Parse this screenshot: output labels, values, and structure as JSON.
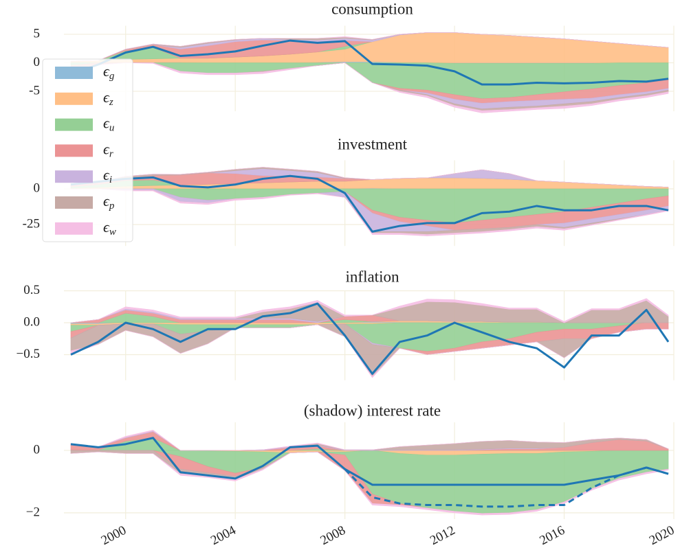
{
  "chart_data": [
    {
      "type": "area",
      "title": "consumption",
      "x": [
        1998,
        1999,
        2000,
        2001,
        2002,
        2003,
        2004,
        2005,
        2006,
        2007,
        2008,
        2009,
        2010,
        2011,
        2012,
        2013,
        2014,
        2015,
        2016,
        2017,
        2018,
        2019,
        2019.8
      ],
      "xlim": [
        1998,
        2020
      ],
      "ylim": [
        -8.5,
        6.5
      ],
      "yticks": [
        5,
        0,
        -5
      ],
      "grid": true,
      "legend": "upper left",
      "series": [
        {
          "name": "ϵg",
          "color": "#8fbbd9",
          "values": [
            0.1,
            0.1,
            0.1,
            0.1,
            0.1,
            0,
            0,
            0,
            0,
            0.1,
            0.2,
            0.2,
            0.1,
            0,
            -0.1,
            -0.1,
            -0.1,
            -0.1,
            -0.1,
            -0.1,
            0,
            0,
            0
          ]
        },
        {
          "name": "ϵz",
          "color": "#ffbf86",
          "values": [
            0.2,
            0.3,
            0.5,
            0.6,
            0.7,
            0.8,
            1,
            1.2,
            1.5,
            1.8,
            2.2,
            3.5,
            4.8,
            5.3,
            5.3,
            5.0,
            4.8,
            4.5,
            4.2,
            3.8,
            3.4,
            3.0,
            2.7
          ]
        },
        {
          "name": "ϵu",
          "color": "#95cf95",
          "values": [
            -0.5,
            0,
            1.5,
            2,
            -1.5,
            -1.8,
            -1.8,
            -1.5,
            -1,
            -0.5,
            0.5,
            -3.5,
            -4.5,
            -4.8,
            -5.5,
            -6.2,
            -6.0,
            -5.5,
            -5,
            -4.5,
            -4,
            -3.5,
            -3
          ]
        },
        {
          "name": "ϵr",
          "color": "#eb9394",
          "values": [
            -1,
            -0.3,
            0.2,
            0.5,
            1.6,
            2.2,
            2.7,
            2.8,
            2.4,
            1.8,
            1,
            0,
            -0.3,
            -0.5,
            -0.8,
            -0.8,
            -0.7,
            -1,
            -1.3,
            -1.6,
            -1.6,
            -1.6,
            -1.5
          ]
        },
        {
          "name": "ϵi",
          "color": "#c9b3de",
          "values": [
            0,
            0,
            0,
            0,
            0.3,
            0.4,
            0.3,
            0.3,
            0.2,
            0.3,
            0.4,
            0.3,
            0.1,
            -0.3,
            -0.8,
            -1,
            -1,
            -1,
            -0.8,
            -0.6,
            -0.5,
            -0.4,
            -0.3
          ]
        },
        {
          "name": "ϵp",
          "color": "#c6aaa5",
          "values": [
            -0.3,
            0,
            0.1,
            0.1,
            0.2,
            0.2,
            0.1,
            -0.1,
            0.2,
            0.3,
            0.2,
            0.1,
            -0.2,
            -0.2,
            -0.3,
            -0.3,
            -0.4,
            -0.3,
            -0.4,
            -0.4,
            -0.3,
            -0.3,
            -0.3
          ]
        },
        {
          "name": "ϵw",
          "color": "#f5bfe4",
          "values": [
            -0.2,
            -0.1,
            0,
            -0.1,
            -0.3,
            -0.3,
            -0.3,
            -0.3,
            -0.2,
            0,
            0.1,
            0,
            -0.2,
            -0.3,
            -0.3,
            -0.4,
            -0.3,
            -0.3,
            -0.4,
            -0.3,
            -0.3,
            -0.3,
            -0.3
          ]
        }
      ],
      "lines": [
        {
          "color": "#1f77b4",
          "dashed": false,
          "values": [
            -2,
            -0.3,
            1.8,
            2.8,
            1.2,
            1.5,
            2,
            3,
            3.9,
            3.5,
            3.8,
            -0.2,
            -0.3,
            -0.5,
            -1.5,
            -3.8,
            -3.8,
            -3.5,
            -3.6,
            -3.5,
            -3.2,
            -3.3,
            -2.8
          ]
        }
      ]
    },
    {
      "type": "area",
      "title": "investment",
      "x": [
        1998,
        1999,
        2000,
        2001,
        2002,
        2003,
        2004,
        2005,
        2006,
        2007,
        2008,
        2009,
        2010,
        2011,
        2012,
        2013,
        2014,
        2015,
        2016,
        2017,
        2018,
        2019,
        2019.8
      ],
      "xlim": [
        1998,
        2020
      ],
      "ylim": [
        -40,
        20
      ],
      "yticks": [
        0,
        -25
      ],
      "grid": true,
      "series": [
        {
          "color": "#8fbbd9",
          "values": [
            0,
            0,
            0.3,
            0.3,
            0.2,
            0.2,
            0.2,
            0.2,
            0.3,
            0.3,
            0.3,
            0.5,
            0.3,
            0.2,
            0.2,
            0.2,
            0.2,
            0.2,
            0.2,
            0.2,
            0.2,
            0.2,
            0.2
          ]
        },
        {
          "color": "#ffbf86",
          "values": [
            0.5,
            1,
            1.5,
            2,
            2.5,
            3,
            3.5,
            4,
            4.5,
            5,
            5,
            6,
            7,
            7.5,
            7.5,
            7.2,
            6.5,
            5.5,
            4.5,
            3.5,
            2.5,
            1.5,
            1
          ]
        },
        {
          "color": "#95cf95",
          "values": [
            1,
            2,
            4,
            4,
            -6,
            -8,
            -7,
            -6,
            -4,
            -3,
            -2,
            -15,
            -20,
            -22,
            -24,
            -22,
            -20,
            -18,
            -16,
            -13,
            -10,
            -7,
            -5
          ]
        },
        {
          "color": "#eb9394",
          "values": [
            2,
            2,
            2,
            3,
            7,
            8,
            7,
            5,
            4,
            3,
            2,
            -2,
            -3,
            -4,
            -5,
            -6,
            -7,
            -7,
            -8,
            -8,
            -8,
            -8,
            -7
          ]
        },
        {
          "color": "#c9b3de",
          "values": [
            0,
            0,
            -1,
            -1,
            -3,
            -2,
            2,
            5,
            4,
            3,
            -4,
            -13,
            -7,
            -4,
            3,
            6,
            4,
            0,
            -3,
            -3,
            -3,
            -3,
            -3
          ]
        },
        {
          "color": "#c6aaa5",
          "values": [
            0,
            0,
            1,
            1,
            0.5,
            0.5,
            1,
            1,
            1,
            1,
            0.5,
            -1,
            -1,
            -2,
            -2,
            -2,
            -1.5,
            -1.5,
            -1,
            -1,
            -0.5,
            0,
            0
          ]
        },
        {
          "color": "#f5bfe4",
          "values": [
            0,
            0,
            -0.5,
            -0.5,
            -1,
            -1,
            -1,
            -1,
            -0.5,
            -0.5,
            0,
            -1,
            -1,
            -1,
            -1,
            -1,
            -1,
            -1,
            -1,
            -0.5,
            -0.5,
            -0.5,
            -0.5
          ]
        }
      ],
      "lines": [
        {
          "color": "#1f77b4",
          "dashed": false,
          "values": [
            3,
            5,
            7,
            8,
            2,
            1,
            3,
            7,
            9,
            7,
            -3,
            -30,
            -26,
            -24,
            -24,
            -17,
            -16,
            -12,
            -15,
            -15,
            -12,
            -12,
            -15
          ]
        }
      ]
    },
    {
      "type": "area",
      "title": "inflation",
      "x": [
        1998,
        1999,
        2000,
        2001,
        2002,
        2003,
        2004,
        2005,
        2006,
        2007,
        2008,
        2009,
        2010,
        2011,
        2012,
        2013,
        2014,
        2015,
        2016,
        2017,
        2018,
        2019,
        2019.8
      ],
      "xlim": [
        1998,
        2020
      ],
      "ylim": [
        -0.9,
        0.5
      ],
      "yticks": [
        {
          "value": 0.5,
          "label": "0.5"
        },
        {
          "value": 0,
          "label": "0.0"
        },
        {
          "value": -0.5,
          "label": "−0.5"
        }
      ],
      "grid": true,
      "series": [
        {
          "color": "#8fbbd9",
          "values": [
            -0.02,
            -0.02,
            0,
            0,
            0,
            0,
            0,
            0,
            0,
            0,
            0,
            0.02,
            0.01,
            0.01,
            0,
            0,
            0,
            0,
            0,
            0,
            0,
            0,
            0
          ]
        },
        {
          "color": "#ffbf86",
          "values": [
            -0.02,
            -0.02,
            -0.02,
            -0.02,
            -0.03,
            -0.03,
            -0.03,
            -0.03,
            -0.03,
            -0.03,
            -0.02,
            -0.02,
            0.02,
            0.02,
            0.02,
            0.02,
            0.01,
            0.01,
            0,
            0,
            0,
            0,
            0
          ]
        },
        {
          "color": "#95cf95",
          "values": [
            -0.1,
            0,
            0.15,
            0.1,
            -0.15,
            -0.1,
            -0.05,
            -0.05,
            -0.05,
            0,
            0.05,
            -0.3,
            -0.4,
            -0.45,
            -0.4,
            -0.3,
            -0.25,
            -0.15,
            -0.1,
            -0.1,
            -0.05,
            0,
            0
          ]
        },
        {
          "color": "#eb9394",
          "values": [
            -0.1,
            0.05,
            0.05,
            0.05,
            0.05,
            0.05,
            0.05,
            0.05,
            0.05,
            0,
            0.05,
            0.1,
            0,
            -0.05,
            -0.05,
            -0.1,
            -0.1,
            -0.15,
            -0.15,
            -0.15,
            -0.1,
            -0.1,
            -0.1
          ]
        },
        {
          "color": "#c9b3de",
          "values": [
            0,
            0,
            0.02,
            0.02,
            0.02,
            0.02,
            0.02,
            0.02,
            0.02,
            0.02,
            0,
            -0.02,
            0,
            0,
            0,
            0,
            0,
            0,
            0,
            0,
            0,
            0,
            0
          ]
        },
        {
          "color": "#c6aaa5",
          "values": [
            -0.2,
            -0.3,
            -0.1,
            -0.2,
            -0.3,
            -0.2,
            0,
            0.1,
            0.15,
            0.3,
            -0.2,
            -0.5,
            0.2,
            0.3,
            0.3,
            0.25,
            0.2,
            0.2,
            -0.3,
            0.2,
            0.2,
            0.35,
            0.1
          ]
        },
        {
          "color": "#f5bfe4",
          "values": [
            -0.05,
            0,
            0.03,
            0.03,
            0.02,
            0.02,
            0.02,
            0.03,
            0.03,
            0.03,
            0.02,
            -0.02,
            0.03,
            0.04,
            0.04,
            0.03,
            0.02,
            0.02,
            0.02,
            0.02,
            0.02,
            0.03,
            0.02
          ]
        }
      ],
      "lines": [
        {
          "color": "#1f77b4",
          "dashed": false,
          "values": [
            -0.5,
            -0.3,
            0,
            -0.1,
            -0.3,
            -0.1,
            -0.1,
            0.1,
            0.15,
            0.3,
            -0.2,
            -0.8,
            -0.3,
            -0.2,
            0,
            -0.15,
            -0.3,
            -0.4,
            -0.7,
            -0.2,
            -0.2,
            0.2,
            -0.3
          ]
        }
      ]
    },
    {
      "type": "area",
      "title": "(shadow) interest rate",
      "x": [
        1998,
        1999,
        2000,
        2001,
        2002,
        2003,
        2004,
        2005,
        2006,
        2007,
        2008,
        2009,
        2010,
        2011,
        2012,
        2013,
        2014,
        2015,
        2016,
        2017,
        2018,
        2019,
        2019.8
      ],
      "xlim": [
        1998,
        2020
      ],
      "ylim": [
        -2.2,
        0.9
      ],
      "yticks": [
        0,
        {
          "value": -2,
          "label": "−2"
        }
      ],
      "xticks": [
        2000,
        2004,
        2008,
        2012,
        2016,
        2020
      ],
      "grid": true,
      "series": [
        {
          "color": "#8fbbd9",
          "values": [
            0.02,
            0.01,
            0,
            0,
            0,
            0,
            0,
            0,
            0,
            0,
            0,
            0,
            0,
            0,
            0,
            0,
            0,
            0,
            0,
            0,
            0,
            0,
            0
          ]
        },
        {
          "color": "#ffbf86",
          "values": [
            0,
            0,
            0,
            0,
            0,
            -0.02,
            -0.03,
            -0.05,
            -0.08,
            -0.05,
            -0.05,
            0,
            -0.1,
            -0.15,
            -0.15,
            -0.12,
            -0.1,
            -0.1,
            -0.05,
            -0.03,
            0,
            0,
            0
          ]
        },
        {
          "color": "#95cf95",
          "values": [
            0,
            0,
            0.3,
            0.4,
            -0.2,
            -0.5,
            -0.7,
            -0.5,
            0,
            0.05,
            -0.1,
            -1.4,
            -1.6,
            -1.7,
            -1.8,
            -1.9,
            -1.9,
            -1.8,
            -1.6,
            -1.2,
            -0.9,
            -0.7,
            -0.6
          ]
        },
        {
          "color": "#eb9394",
          "values": [
            0.2,
            0.1,
            0.1,
            0.2,
            -0.4,
            -0.2,
            -0.1,
            0,
            0.1,
            0.1,
            -0.5,
            -0.3,
            -0.05,
            0,
            0,
            0.02,
            0.05,
            0.05,
            0.1,
            0.25,
            0.35,
            0.3,
            0.05
          ]
        },
        {
          "color": "#c9b3de",
          "values": [
            0,
            0,
            0.02,
            0.02,
            0,
            0,
            0,
            0.02,
            0.02,
            0.02,
            0.02,
            0.02,
            0.02,
            0.02,
            0.02,
            0.02,
            0.02,
            0.02,
            0,
            0,
            0,
            0,
            0
          ]
        },
        {
          "color": "#c6aaa5",
          "values": [
            -0.1,
            -0.05,
            -0.1,
            -0.1,
            -0.15,
            -0.1,
            -0.1,
            -0.05,
            0,
            0.05,
            0,
            0,
            0.1,
            0.15,
            0.2,
            0.25,
            0.25,
            0.2,
            0.15,
            0.1,
            0.05,
            0.05,
            0
          ]
        },
        {
          "color": "#f5bfe4",
          "values": [
            0,
            0,
            0.03,
            0.03,
            -0.05,
            -0.05,
            -0.05,
            -0.03,
            0.02,
            0.02,
            0,
            -0.05,
            -0.05,
            -0.05,
            -0.05,
            -0.05,
            -0.05,
            -0.05,
            -0.05,
            -0.05,
            -0.05,
            -0.05,
            -0.03
          ]
        }
      ],
      "lines": [
        {
          "color": "#1f77b4",
          "dashed": false,
          "values": [
            0.2,
            0.1,
            0.2,
            0.4,
            -0.7,
            -0.8,
            -0.9,
            -0.5,
            0.1,
            0.15,
            -0.6,
            -1.1,
            -1.1,
            -1.1,
            -1.1,
            -1.1,
            -1.1,
            -1.1,
            -1.1,
            -0.95,
            -0.8,
            -0.55,
            -0.75
          ]
        },
        {
          "color": "#1f77b4",
          "dashed": true,
          "values": [
            null,
            null,
            null,
            null,
            null,
            null,
            null,
            null,
            null,
            null,
            -0.6,
            -1.5,
            -1.7,
            -1.75,
            -1.75,
            -1.8,
            -1.8,
            -1.75,
            -1.75,
            -1.2,
            -0.8,
            -0.55,
            -0.75
          ]
        }
      ]
    }
  ]
}
